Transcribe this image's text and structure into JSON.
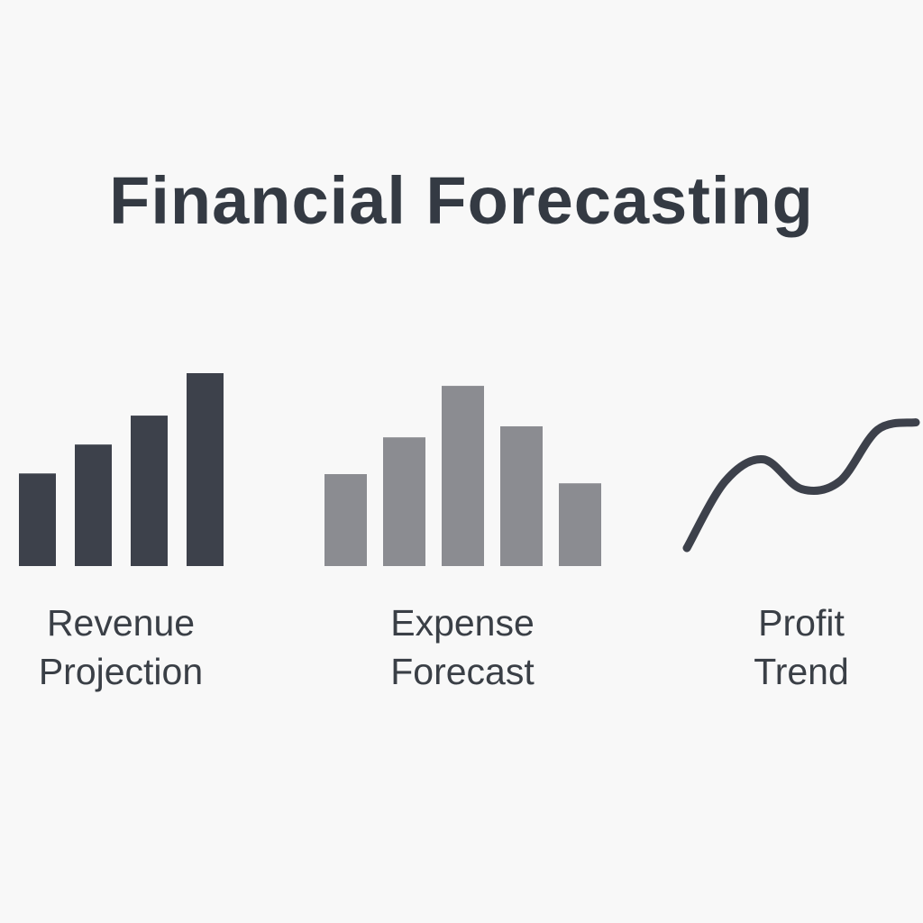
{
  "title": "Financial Forecasting",
  "colors": {
    "background": "#f8f8f8",
    "title_text": "#343a43",
    "revenue_bars": "#3d414b",
    "expense_bars": "#8b8c91",
    "profit_line": "#3d414b"
  },
  "panels": [
    {
      "label_line1": "Revenue",
      "label_line2": "Projection"
    },
    {
      "label_line1": "Expense",
      "label_line2": "Forecast"
    },
    {
      "label_line1": "Profit",
      "label_line2": "Trend"
    }
  ],
  "chart_data": [
    {
      "type": "bar",
      "categories": [
        "1",
        "2",
        "3",
        "4"
      ],
      "values": [
        48,
        63,
        78,
        100
      ],
      "ylim": [
        0,
        100
      ],
      "grid": false,
      "color": "#3d414b"
    },
    {
      "type": "bar",
      "categories": [
        "1",
        "2",
        "3",
        "4",
        "5"
      ],
      "values": [
        50,
        70,
        98,
        76,
        45
      ],
      "ylim": [
        0,
        100
      ],
      "grid": false,
      "color": "#8b8c91"
    },
    {
      "type": "line",
      "x": [
        0,
        1,
        2,
        3,
        4,
        5,
        6
      ],
      "values": [
        0,
        45,
        60,
        40,
        45,
        80,
        85
      ],
      "ylim": [
        0,
        100
      ],
      "grid": false,
      "color": "#3d414b"
    }
  ]
}
